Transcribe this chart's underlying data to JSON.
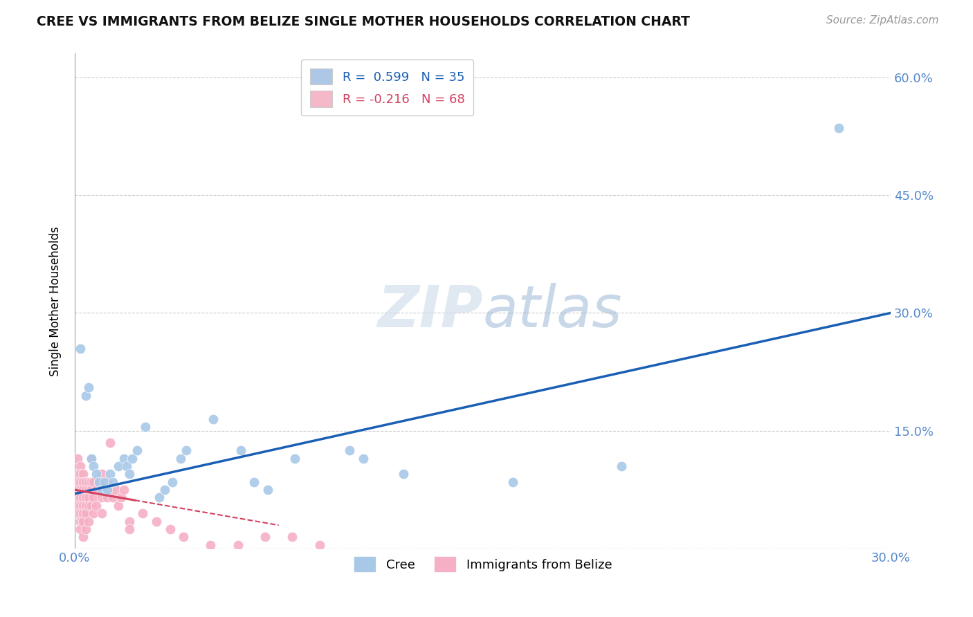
{
  "title": "CREE VS IMMIGRANTS FROM BELIZE SINGLE MOTHER HOUSEHOLDS CORRELATION CHART",
  "source": "Source: ZipAtlas.com",
  "ylabel": "Single Mother Households",
  "xlim": [
    0.0,
    0.3
  ],
  "ylim": [
    0.0,
    0.63
  ],
  "xticks": [
    0.0,
    0.05,
    0.1,
    0.15,
    0.2,
    0.25,
    0.3
  ],
  "yticks": [
    0.0,
    0.15,
    0.3,
    0.45,
    0.6
  ],
  "xtick_labels": [
    "0.0%",
    "",
    "",
    "",
    "",
    "",
    "30.0%"
  ],
  "ytick_labels_right": [
    "",
    "15.0%",
    "30.0%",
    "45.0%",
    "60.0%"
  ],
  "background_color": "#ffffff",
  "legend_top": {
    "cree_label": "R =  0.599   N = 35",
    "belize_label": "R = -0.216   N = 68",
    "cree_color": "#adc8e6",
    "belize_color": "#f5b8c8"
  },
  "cree_color": "#a8c8e8",
  "belize_color": "#f5b0c5",
  "cree_line_color": "#1a5fb4",
  "belize_line_color": "#d44060",
  "grid_color": "#cccccc",
  "axis_label_color": "#5588cc",
  "cree_points": [
    [
      0.002,
      0.255
    ],
    [
      0.004,
      0.195
    ],
    [
      0.005,
      0.205
    ],
    [
      0.006,
      0.115
    ],
    [
      0.007,
      0.105
    ],
    [
      0.008,
      0.095
    ],
    [
      0.009,
      0.085
    ],
    [
      0.01,
      0.075
    ],
    [
      0.011,
      0.085
    ],
    [
      0.012,
      0.075
    ],
    [
      0.013,
      0.095
    ],
    [
      0.014,
      0.085
    ],
    [
      0.016,
      0.105
    ],
    [
      0.018,
      0.115
    ],
    [
      0.019,
      0.105
    ],
    [
      0.02,
      0.095
    ],
    [
      0.021,
      0.115
    ],
    [
      0.023,
      0.125
    ],
    [
      0.026,
      0.155
    ],
    [
      0.031,
      0.065
    ],
    [
      0.033,
      0.075
    ],
    [
      0.036,
      0.085
    ],
    [
      0.039,
      0.115
    ],
    [
      0.041,
      0.125
    ],
    [
      0.051,
      0.165
    ],
    [
      0.061,
      0.125
    ],
    [
      0.066,
      0.085
    ],
    [
      0.071,
      0.075
    ],
    [
      0.081,
      0.115
    ],
    [
      0.101,
      0.125
    ],
    [
      0.106,
      0.115
    ],
    [
      0.121,
      0.095
    ],
    [
      0.161,
      0.085
    ],
    [
      0.201,
      0.105
    ],
    [
      0.281,
      0.535
    ]
  ],
  "belize_points": [
    [
      0.001,
      0.115
    ],
    [
      0.001,
      0.095
    ],
    [
      0.001,
      0.085
    ],
    [
      0.001,
      0.075
    ],
    [
      0.001,
      0.065
    ],
    [
      0.001,
      0.055
    ],
    [
      0.001,
      0.045
    ],
    [
      0.002,
      0.105
    ],
    [
      0.002,
      0.095
    ],
    [
      0.002,
      0.085
    ],
    [
      0.002,
      0.075
    ],
    [
      0.002,
      0.065
    ],
    [
      0.002,
      0.055
    ],
    [
      0.002,
      0.045
    ],
    [
      0.002,
      0.035
    ],
    [
      0.002,
      0.025
    ],
    [
      0.003,
      0.095
    ],
    [
      0.003,
      0.085
    ],
    [
      0.003,
      0.075
    ],
    [
      0.003,
      0.065
    ],
    [
      0.003,
      0.055
    ],
    [
      0.003,
      0.045
    ],
    [
      0.003,
      0.035
    ],
    [
      0.003,
      0.015
    ],
    [
      0.004,
      0.085
    ],
    [
      0.004,
      0.075
    ],
    [
      0.004,
      0.065
    ],
    [
      0.004,
      0.055
    ],
    [
      0.004,
      0.045
    ],
    [
      0.004,
      0.025
    ],
    [
      0.005,
      0.085
    ],
    [
      0.005,
      0.075
    ],
    [
      0.005,
      0.065
    ],
    [
      0.005,
      0.055
    ],
    [
      0.005,
      0.035
    ],
    [
      0.006,
      0.115
    ],
    [
      0.006,
      0.085
    ],
    [
      0.006,
      0.075
    ],
    [
      0.006,
      0.055
    ],
    [
      0.007,
      0.085
    ],
    [
      0.007,
      0.065
    ],
    [
      0.007,
      0.045
    ],
    [
      0.008,
      0.075
    ],
    [
      0.008,
      0.055
    ],
    [
      0.009,
      0.085
    ],
    [
      0.01,
      0.095
    ],
    [
      0.01,
      0.065
    ],
    [
      0.01,
      0.045
    ],
    [
      0.012,
      0.085
    ],
    [
      0.012,
      0.065
    ],
    [
      0.013,
      0.135
    ],
    [
      0.013,
      0.075
    ],
    [
      0.014,
      0.065
    ],
    [
      0.015,
      0.075
    ],
    [
      0.016,
      0.055
    ],
    [
      0.017,
      0.065
    ],
    [
      0.018,
      0.075
    ],
    [
      0.02,
      0.035
    ],
    [
      0.02,
      0.025
    ],
    [
      0.025,
      0.045
    ],
    [
      0.03,
      0.035
    ],
    [
      0.035,
      0.025
    ],
    [
      0.04,
      0.015
    ],
    [
      0.05,
      0.005
    ],
    [
      0.06,
      0.005
    ],
    [
      0.07,
      0.015
    ],
    [
      0.08,
      0.015
    ],
    [
      0.09,
      0.005
    ]
  ]
}
